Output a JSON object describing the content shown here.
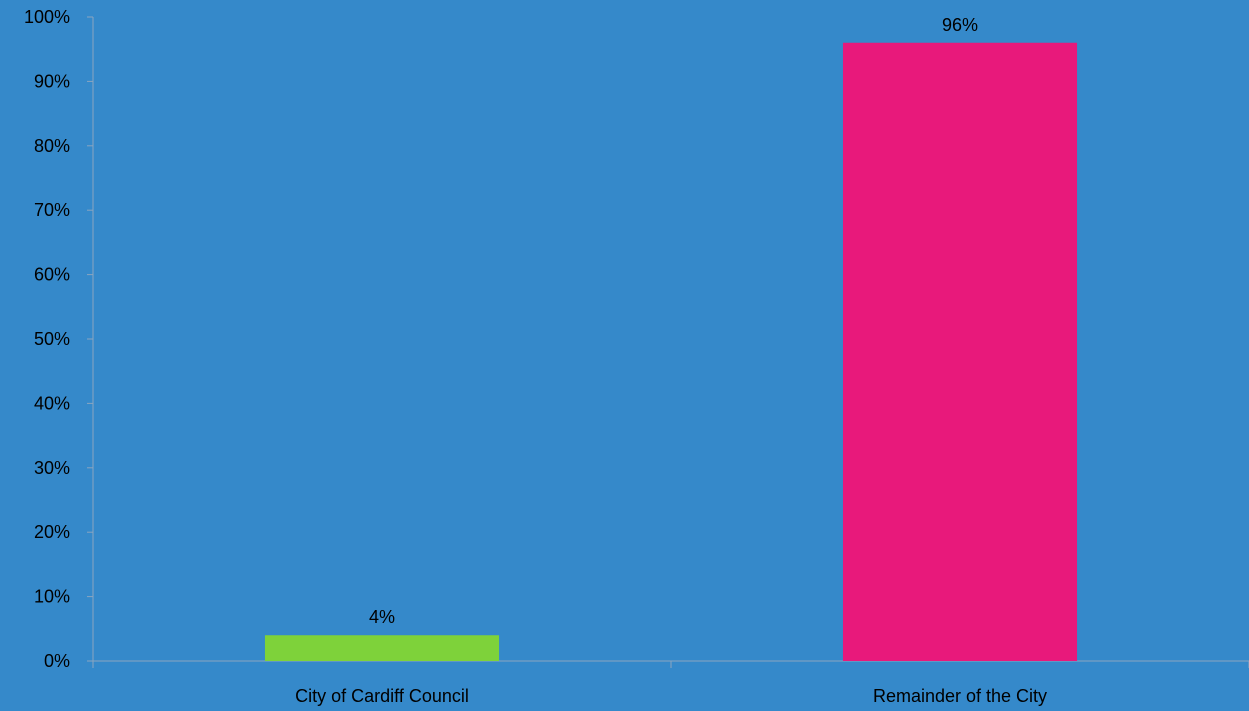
{
  "chart_data": {
    "type": "bar",
    "categories": [
      "City of Cardiff Council",
      "Remainder of the City"
    ],
    "values": [
      4,
      96
    ],
    "data_labels": [
      "4%",
      "96%"
    ],
    "bar_colors": [
      "#7ED23A",
      "#E8197B"
    ],
    "background_color": "#3589CA",
    "axis_color": "#8AA5C0",
    "ylim": [
      0,
      100
    ],
    "yticks": [
      0,
      10,
      20,
      30,
      40,
      50,
      60,
      70,
      80,
      90,
      100
    ],
    "ytick_labels": [
      "0%",
      "10%",
      "20%",
      "30%",
      "40%",
      "50%",
      "60%",
      "70%",
      "80%",
      "90%",
      "100%"
    ],
    "grid": false,
    "legend": "none"
  }
}
